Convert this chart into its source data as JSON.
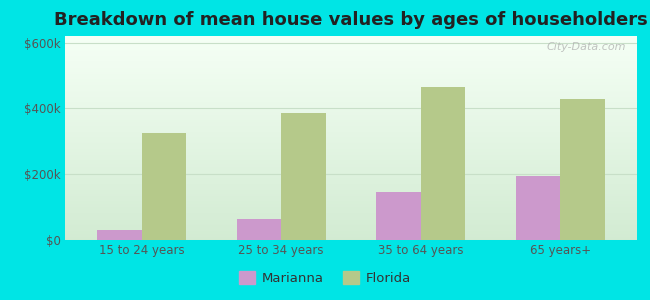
{
  "title": "Breakdown of mean house values by ages of householders",
  "categories": [
    "15 to 24 years",
    "25 to 34 years",
    "35 to 64 years",
    "65 years+"
  ],
  "marianna_values": [
    30000,
    65000,
    145000,
    195000
  ],
  "florida_values": [
    325000,
    385000,
    465000,
    430000
  ],
  "marianna_color": "#cc99cc",
  "florida_color": "#b5c98a",
  "background_color": "#00e5e5",
  "ylim": [
    0,
    620000
  ],
  "yticks": [
    0,
    200000,
    400000,
    600000
  ],
  "ytick_labels": [
    "$0",
    "$200k",
    "$400k",
    "$600k"
  ],
  "bar_width": 0.32,
  "legend_labels": [
    "Marianna",
    "Florida"
  ],
  "watermark": "City-Data.com",
  "title_fontsize": 13,
  "tick_fontsize": 8.5,
  "legend_fontsize": 9.5,
  "grid_color": "#c8dfc8",
  "plot_bg_top": "#f5fff5",
  "plot_bg_bottom": "#d8efd8"
}
